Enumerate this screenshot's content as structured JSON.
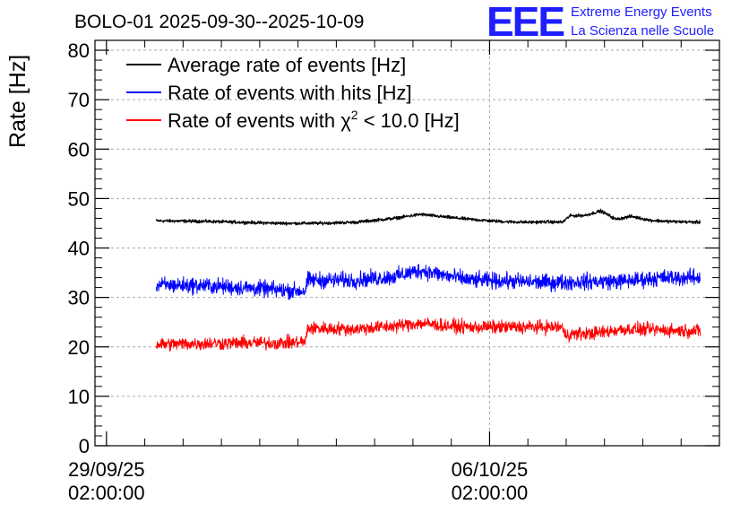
{
  "chart_data": {
    "type": "line",
    "title": "BOLO-01 2025-09-30--2025-10-09",
    "ylabel": "Rate [Hz]",
    "xlabel": "",
    "ylim": [
      0,
      82
    ],
    "yticks": [
      0,
      10,
      20,
      30,
      40,
      50,
      60,
      70,
      80
    ],
    "xlim": [
      -0.3,
      16.0
    ],
    "xticks": [
      {
        "value": 0,
        "date": "29/09/25",
        "time": "02:00:00"
      },
      {
        "value": 10,
        "date": "06/10/25",
        "time": "02:00:00"
      }
    ],
    "grid": true,
    "legend_position": "top-left",
    "series": [
      {
        "name": "Average rate of events [Hz]",
        "color": "#000000",
        "noise": 0.3,
        "x": [
          1.3,
          2.5,
          3.5,
          4.5,
          5.5,
          6.5,
          7.5,
          8.2,
          8.8,
          9.5,
          10.0,
          10.5,
          11.0,
          11.5,
          11.9,
          12.1,
          12.5,
          12.9,
          13.3,
          13.7,
          14.2,
          14.6,
          15.0,
          15.5
        ],
        "values": [
          45.5,
          45.4,
          45.2,
          45.0,
          45.0,
          45.2,
          46.0,
          46.8,
          46.3,
          45.8,
          45.5,
          45.3,
          45.2,
          45.3,
          45.2,
          46.5,
          46.6,
          47.5,
          45.8,
          46.4,
          45.6,
          45.4,
          45.3,
          45.2
        ]
      },
      {
        "name": "Rate of events with hits [Hz]",
        "color": "#0000ff",
        "noise": 1.6,
        "x": [
          1.3,
          2.5,
          3.5,
          4.5,
          5.2,
          5.25,
          6.5,
          7.5,
          8.2,
          8.8,
          9.5,
          10.5,
          11.5,
          12.5,
          13.5,
          14.5,
          15.5
        ],
        "values": [
          32.5,
          32.4,
          32.0,
          31.5,
          31.3,
          33.5,
          33.5,
          34.2,
          35.5,
          34.5,
          33.5,
          33.3,
          33.0,
          33.2,
          33.3,
          34.0,
          34.0
        ]
      },
      {
        "name": "Rate of events with χ2 < 10.0 [Hz]",
        "color": "#ff0000",
        "noise": 1.3,
        "x": [
          1.3,
          2.5,
          3.5,
          4.5,
          5.2,
          5.25,
          6.5,
          7.5,
          8.2,
          8.8,
          9.5,
          10.5,
          11.5,
          11.9,
          11.95,
          12.8,
          13.5,
          14.5,
          15.5
        ],
        "values": [
          20.5,
          20.7,
          20.8,
          20.8,
          21.0,
          23.8,
          23.6,
          24.2,
          24.8,
          24.3,
          24.0,
          24.0,
          24.0,
          24.0,
          22.5,
          22.8,
          23.6,
          23.4,
          23.2
        ]
      }
    ]
  },
  "legend": {
    "entries": [
      {
        "color": "#000000",
        "text": "Average rate of events [Hz]"
      },
      {
        "color": "#0000ff",
        "text": "Rate of events with hits [Hz]"
      },
      {
        "color": "#ff0000",
        "text_before": "Rate of events with ",
        "symbol": "χ",
        "sup": "2",
        "text_after": " < 10.0 [Hz]"
      }
    ]
  },
  "logo": {
    "mark": "EEE",
    "line1": "Extreme Energy Events",
    "line2": "La Scienza nelle Scuole"
  }
}
